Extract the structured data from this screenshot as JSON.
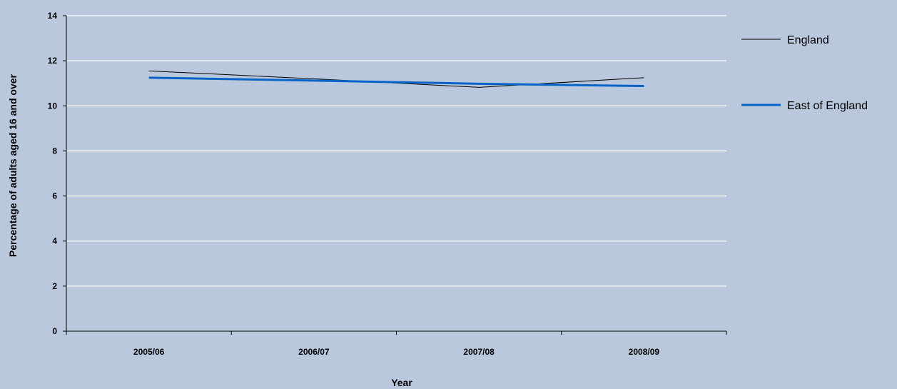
{
  "chart_data": {
    "type": "line",
    "categories": [
      "2005/06",
      "2006/07",
      "2007/08",
      "2008/09"
    ],
    "series": [
      {
        "name": "England",
        "values": [
          11.55,
          11.2,
          10.82,
          11.25
        ],
        "color": "#000000",
        "line": "thin"
      },
      {
        "name": "East of England",
        "values": [
          11.25,
          11.12,
          10.98,
          10.88
        ],
        "color": "#0a64c8",
        "line": "thick"
      }
    ],
    "xlabel": "Year",
    "ylabel": "Percentage of adults aged 16 and over",
    "ylim": [
      0,
      14
    ],
    "yticks": [
      0,
      2,
      4,
      6,
      8,
      10,
      12,
      14
    ],
    "grid": true,
    "legend_position": "right"
  }
}
